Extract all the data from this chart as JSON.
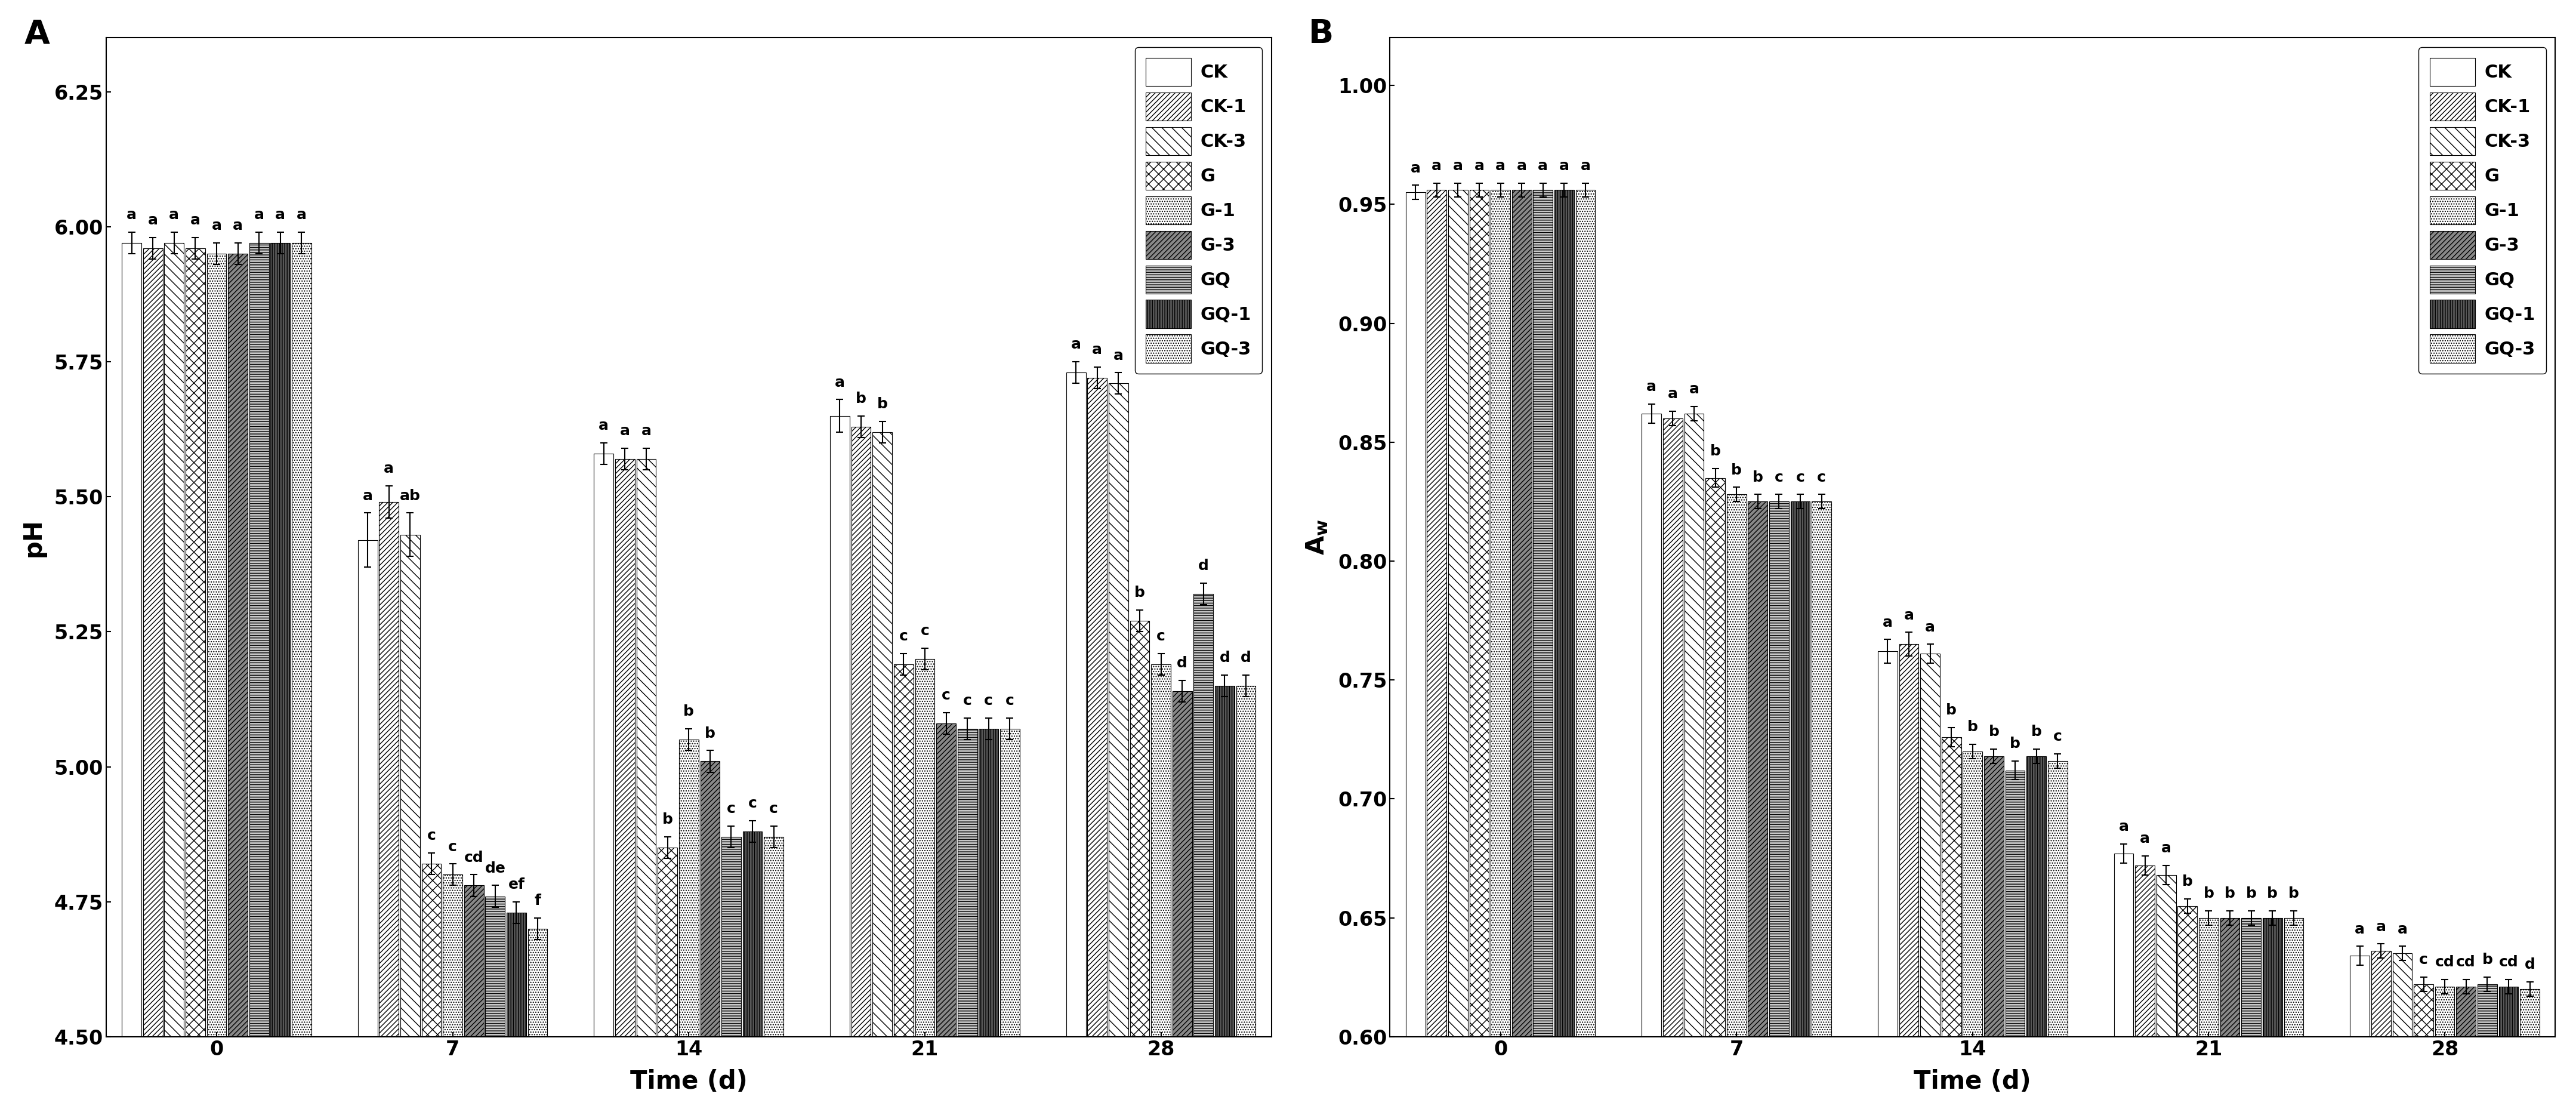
{
  "groups": [
    "CK",
    "CK-1",
    "CK-3",
    "G",
    "G-1",
    "G-3",
    "GQ",
    "GQ-1",
    "GQ-3"
  ],
  "time_points": [
    0,
    7,
    14,
    21,
    28
  ],
  "pH_values": {
    "CK": [
      5.97,
      5.42,
      5.58,
      5.65,
      5.73
    ],
    "CK-1": [
      5.96,
      5.49,
      5.57,
      5.63,
      5.72
    ],
    "CK-3": [
      5.97,
      5.43,
      5.57,
      5.62,
      5.71
    ],
    "G": [
      5.96,
      4.82,
      4.85,
      5.19,
      5.27
    ],
    "G-1": [
      5.95,
      4.8,
      5.05,
      5.2,
      5.19
    ],
    "G-3": [
      5.95,
      4.78,
      5.01,
      5.08,
      5.14
    ],
    "GQ": [
      5.97,
      4.76,
      4.87,
      5.07,
      5.32
    ],
    "GQ-1": [
      5.97,
      4.73,
      4.88,
      5.07,
      5.15
    ],
    "GQ-3": [
      5.97,
      4.7,
      4.87,
      5.07,
      5.15
    ]
  },
  "pH_errors": {
    "CK": [
      0.02,
      0.05,
      0.02,
      0.03,
      0.02
    ],
    "CK-1": [
      0.02,
      0.03,
      0.02,
      0.02,
      0.02
    ],
    "CK-3": [
      0.02,
      0.04,
      0.02,
      0.02,
      0.02
    ],
    "G": [
      0.02,
      0.02,
      0.02,
      0.02,
      0.02
    ],
    "G-1": [
      0.02,
      0.02,
      0.02,
      0.02,
      0.02
    ],
    "G-3": [
      0.02,
      0.02,
      0.02,
      0.02,
      0.02
    ],
    "GQ": [
      0.02,
      0.02,
      0.02,
      0.02,
      0.02
    ],
    "GQ-1": [
      0.02,
      0.02,
      0.02,
      0.02,
      0.02
    ],
    "GQ-3": [
      0.02,
      0.02,
      0.02,
      0.02,
      0.02
    ]
  },
  "pH_letters": {
    "0": [
      "a",
      "a",
      "a",
      "a",
      "a",
      "a",
      "a",
      "a",
      "a"
    ],
    "7": [
      "a",
      "a",
      "ab",
      "c",
      "c",
      "cd",
      "de",
      "ef",
      "f"
    ],
    "14": [
      "a",
      "a",
      "a",
      "b",
      "b",
      "b",
      "c",
      "c",
      "c"
    ],
    "21": [
      "a",
      "b",
      "b",
      "c",
      "c",
      "c",
      "c",
      "c",
      "c"
    ],
    "28": [
      "a",
      "a",
      "a",
      "b",
      "c",
      "d",
      "d",
      "d",
      "d"
    ]
  },
  "Aw_values": {
    "CK": [
      0.955,
      0.862,
      0.762,
      0.677,
      0.634
    ],
    "CK-1": [
      0.956,
      0.86,
      0.765,
      0.672,
      0.636
    ],
    "CK-3": [
      0.956,
      0.862,
      0.761,
      0.668,
      0.635
    ],
    "G": [
      0.956,
      0.835,
      0.726,
      0.655,
      0.622
    ],
    "G-1": [
      0.956,
      0.828,
      0.72,
      0.65,
      0.621
    ],
    "G-3": [
      0.956,
      0.825,
      0.718,
      0.65,
      0.621
    ],
    "GQ": [
      0.956,
      0.825,
      0.712,
      0.65,
      0.622
    ],
    "GQ-1": [
      0.956,
      0.825,
      0.718,
      0.65,
      0.621
    ],
    "GQ-3": [
      0.956,
      0.825,
      0.716,
      0.65,
      0.62
    ]
  },
  "Aw_errors": {
    "CK": [
      0.003,
      0.004,
      0.005,
      0.004,
      0.004
    ],
    "CK-1": [
      0.003,
      0.003,
      0.005,
      0.004,
      0.003
    ],
    "CK-3": [
      0.003,
      0.003,
      0.004,
      0.004,
      0.003
    ],
    "G": [
      0.003,
      0.004,
      0.004,
      0.003,
      0.003
    ],
    "G-1": [
      0.003,
      0.003,
      0.003,
      0.003,
      0.003
    ],
    "G-3": [
      0.003,
      0.003,
      0.003,
      0.003,
      0.003
    ],
    "GQ": [
      0.003,
      0.003,
      0.004,
      0.003,
      0.003
    ],
    "GQ-1": [
      0.003,
      0.003,
      0.003,
      0.003,
      0.003
    ],
    "GQ-3": [
      0.003,
      0.003,
      0.003,
      0.003,
      0.003
    ]
  },
  "Aw_letters": {
    "0": [
      "a",
      "a",
      "a",
      "a",
      "a",
      "a",
      "a",
      "a",
      "a"
    ],
    "7": [
      "a",
      "a",
      "a",
      "b",
      "b",
      "b",
      "c",
      "c",
      "c"
    ],
    "14": [
      "a",
      "a",
      "a",
      "b",
      "b",
      "b",
      "b",
      "b",
      "c"
    ],
    "21": [
      "a",
      "a",
      "a",
      "b",
      "b",
      "b",
      "b",
      "b",
      "b"
    ],
    "28": [
      "a",
      "a",
      "a",
      "c",
      "cd",
      "cd",
      "b",
      "cd",
      "d"
    ]
  },
  "panel_labels": [
    "A",
    "B"
  ],
  "xlabel": "Time (d)",
  "pH_ylabel": "pH",
  "pH_ylim": [
    4.5,
    6.35
  ],
  "Aw_ylim": [
    0.6,
    1.02
  ],
  "pH_yticks": [
    4.5,
    4.75,
    5.0,
    5.25,
    5.5,
    5.75,
    6.0,
    6.25
  ],
  "Aw_yticks": [
    0.6,
    0.65,
    0.7,
    0.75,
    0.8,
    0.85,
    0.9,
    0.95,
    1.0
  ]
}
